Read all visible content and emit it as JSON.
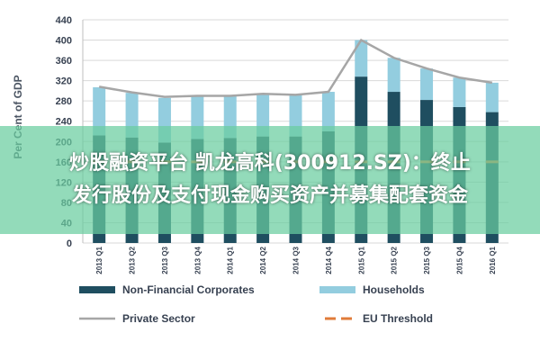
{
  "chart_data": {
    "type": "bar",
    "ylabel": "Per Cent of GDP",
    "ylim": [
      0,
      440
    ],
    "yticks": [
      0,
      40,
      80,
      120,
      160,
      200,
      240,
      280,
      320,
      360,
      400,
      440
    ],
    "categories": [
      "2013 Q1",
      "2013 Q2",
      "2013 Q3",
      "2013 Q4",
      "2014 Q1",
      "2014 Q2",
      "2014 Q3",
      "2014 Q4",
      "2015 Q1",
      "2015 Q2",
      "2015 Q3",
      "2015 Q4",
      "2016 Q1"
    ],
    "stacked": true,
    "grid": true,
    "legend_position": "bottom",
    "series": [
      {
        "name": "Non-Financial Corporates",
        "kind": "bar",
        "color": "#1f4e60",
        "values": [
          212,
          208,
          198,
          205,
          207,
          210,
          210,
          220,
          328,
          298,
          282,
          268,
          258
        ]
      },
      {
        "name": "Households",
        "kind": "bar",
        "color": "#93cddf",
        "values": [
          95,
          88,
          88,
          85,
          83,
          84,
          82,
          78,
          72,
          67,
          62,
          58,
          58
        ]
      },
      {
        "name": "Private Sector",
        "kind": "line",
        "color": "#a6a6a6",
        "values": [
          308,
          297,
          288,
          290,
          290,
          294,
          292,
          298,
          400,
          365,
          344,
          326,
          316
        ]
      },
      {
        "name": "EU Threshold",
        "kind": "dashed",
        "color": "#e07b39",
        "values": [
          160,
          160,
          160,
          160,
          160,
          160,
          160,
          160,
          160,
          160,
          160,
          160,
          160
        ]
      }
    ]
  },
  "overlay": {
    "line1": "炒股融资平台 凯龙高科(300912.SZ)：终止",
    "line2": "发行股份及支付现金购买资产并募集配套资金"
  }
}
